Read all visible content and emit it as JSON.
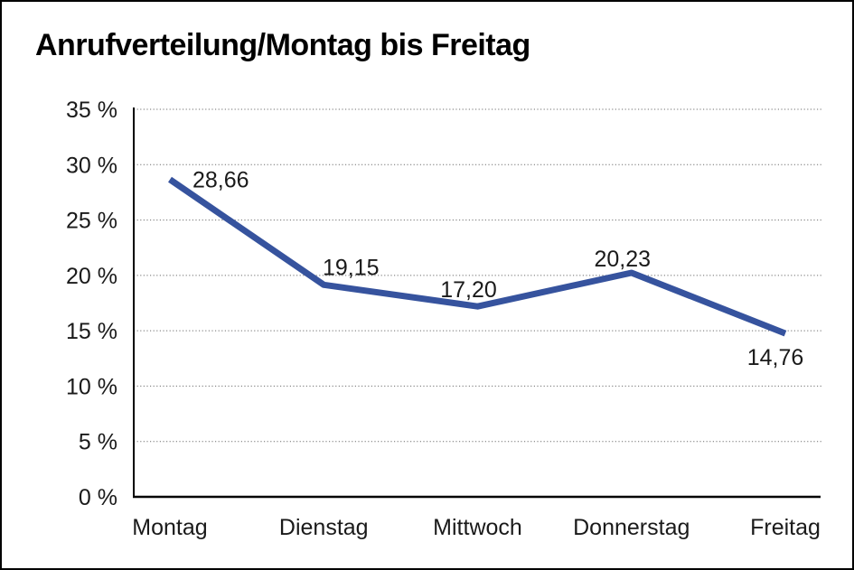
{
  "window": {
    "background_color": "#ffffff",
    "frame_border_color": "#000000"
  },
  "chart_data": {
    "type": "line",
    "title": "Anrufverteilung/Montag bis Freitag",
    "categories": [
      "Montag",
      "Dienstag",
      "Mittwoch",
      "Donnerstag",
      "Freitag"
    ],
    "values": [
      28.66,
      19.15,
      17.2,
      20.23,
      14.76
    ],
    "value_labels": [
      "28,66",
      "19,15",
      "17,20",
      "20,23",
      "14,76"
    ],
    "unit": "%",
    "xlabel": "",
    "ylabel": "",
    "ylim": [
      0,
      35
    ],
    "y_tick_step": 5,
    "y_tick_labels": [
      "0 %",
      "5 %",
      "10 %",
      "15 %",
      "20 %",
      "25 %",
      "30 %",
      "35 %"
    ],
    "grid": "horizontal-dotted",
    "legend": "none",
    "line_color": "#36539E",
    "gridline_color": "#6e6e6e",
    "axis_color": "#000000",
    "text_color": "#1a1a1a",
    "label_positions": [
      "right",
      "above",
      "above",
      "above",
      "below"
    ]
  }
}
